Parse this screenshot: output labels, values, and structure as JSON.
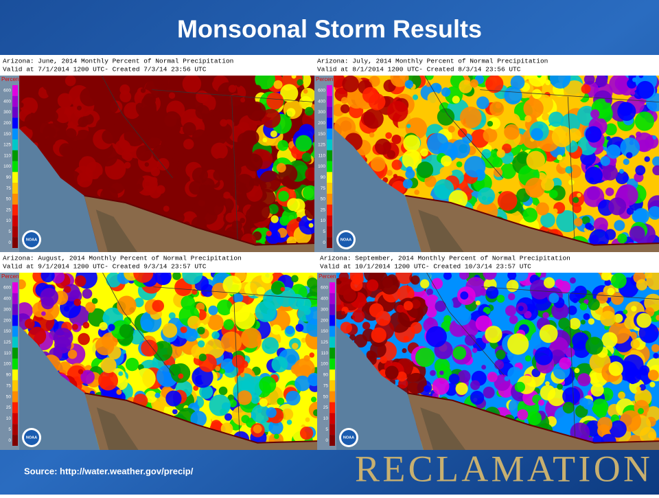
{
  "title": "Monsoonal Storm Results",
  "panels": [
    {
      "line1": "Arizona: June, 2014 Monthly Percent of Normal Precipitation",
      "line2": "Valid at 7/1/2014 1200 UTC- Created 7/3/14 23:56 UTC"
    },
    {
      "line1": "Arizona: July, 2014 Monthly Percent of Normal Precipitation",
      "line2": "Valid at 8/1/2014 1200 UTC- Created 8/3/14 23:56 UTC"
    },
    {
      "line1": "Arizona: August, 2014 Monthly Percent of Normal Precipitation",
      "line2": "Valid at 9/1/2014 1200 UTC- Created 9/3/14 23:57 UTC"
    },
    {
      "line1": "Arizona: September, 2014 Monthly Percent of Normal Precipitation",
      "line2": "Valid at 10/1/2014 1200 UTC- Created 10/3/14 23:57 UTC"
    }
  ],
  "legend": {
    "label": "Percent",
    "ticks": [
      600,
      400,
      300,
      200,
      150,
      125,
      110,
      100,
      90,
      75,
      50,
      25,
      10,
      5,
      0
    ],
    "colors": [
      "#e000e0",
      "#a000d0",
      "#6a00c8",
      "#0000ff",
      "#0090ff",
      "#00c8c8",
      "#009a00",
      "#00e000",
      "#ffff00",
      "#ffc800",
      "#ff8c00",
      "#ff2000",
      "#d00000",
      "#a80000",
      "#800000"
    ]
  },
  "logo": "NOAA",
  "source": "Source: http://water.weather.gov/precip/",
  "brand": "RECLAMATION"
}
